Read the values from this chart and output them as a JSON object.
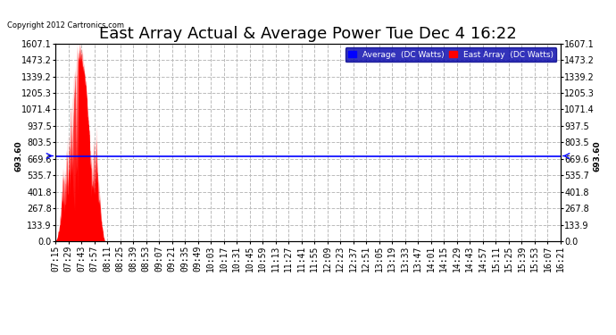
{
  "title": "East Array Actual & Average Power Tue Dec 4 16:22",
  "copyright": "Copyright 2012 Cartronics.com",
  "legend_average": "Average  (DC Watts)",
  "legend_east": "East Array  (DC Watts)",
  "average_value": 693.6,
  "ymax": 1607.1,
  "ymin": 0.0,
  "yticks": [
    0.0,
    133.9,
    267.8,
    401.8,
    535.7,
    669.6,
    803.5,
    937.5,
    1071.4,
    1205.3,
    1339.2,
    1473.2,
    1607.1
  ],
  "background_color": "#ffffff",
  "plot_bg_color": "#ffffff",
  "grid_color": "#bbbbbb",
  "area_color": "#ff0000",
  "avg_line_color": "#0000ff",
  "title_fontsize": 13,
  "tick_fontsize": 7,
  "time_labels": [
    "07:15",
    "07:29",
    "07:43",
    "07:57",
    "08:11",
    "08:25",
    "08:39",
    "08:53",
    "09:07",
    "09:21",
    "09:35",
    "09:49",
    "10:03",
    "10:17",
    "10:31",
    "10:45",
    "10:59",
    "11:13",
    "11:27",
    "11:41",
    "11:55",
    "12:09",
    "12:23",
    "12:37",
    "12:51",
    "13:05",
    "13:19",
    "13:33",
    "13:47",
    "14:01",
    "14:15",
    "14:29",
    "14:43",
    "14:57",
    "15:11",
    "15:25",
    "15:39",
    "15:53",
    "16:07",
    "16:21"
  ],
  "n_fine": 400
}
